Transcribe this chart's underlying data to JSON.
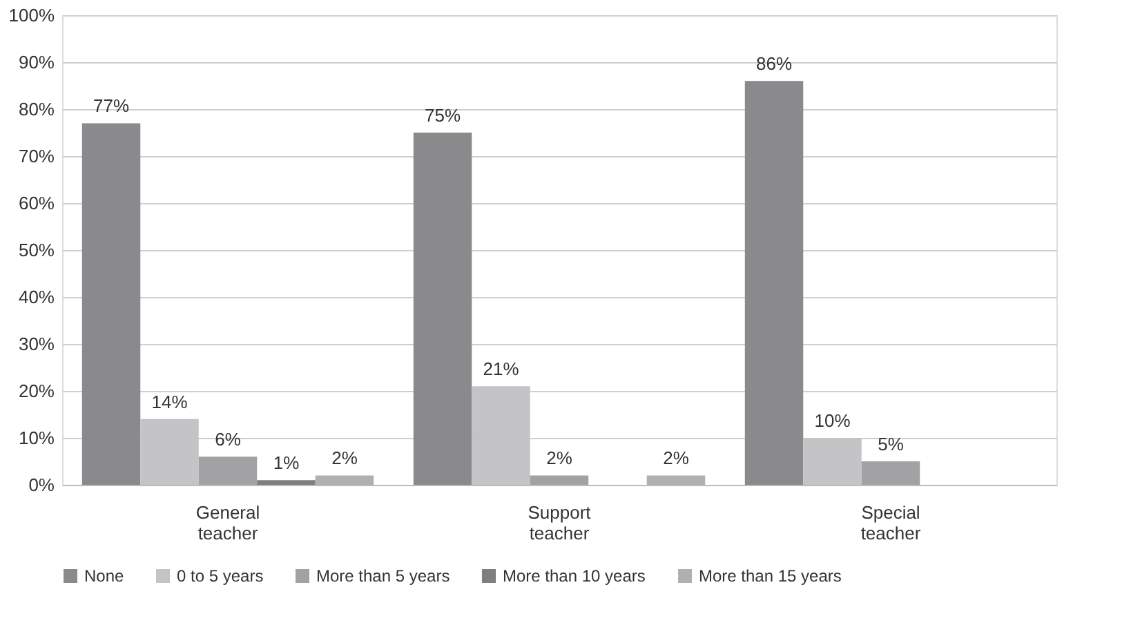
{
  "chart_data": {
    "type": "bar",
    "categories": [
      "General teacher",
      "Support teacher",
      "Special teacher"
    ],
    "series": [
      {
        "name": "None",
        "color": "#8a8a8d",
        "values": [
          77,
          75,
          86
        ],
        "value_labels": [
          "77%",
          "75%",
          "86%"
        ]
      },
      {
        "name": "0 to 5 years",
        "color": "#c4c4c6",
        "values": [
          14,
          21,
          10
        ],
        "value_labels": [
          "14%",
          "21%",
          "10%"
        ]
      },
      {
        "name": "More than 5 years",
        "color": "#a2a2a5",
        "values": [
          6,
          2,
          5
        ],
        "value_labels": [
          "6%",
          "2%",
          "5%"
        ]
      },
      {
        "name": "More than 10 years",
        "color": "#7f7f82",
        "values": [
          1,
          null,
          null
        ],
        "value_labels": [
          "1%",
          null,
          null
        ]
      },
      {
        "name": "More than 15 years",
        "color": "#b0b0b2",
        "values": [
          2,
          2,
          null
        ],
        "value_labels": [
          "2%",
          "2%",
          null
        ]
      }
    ],
    "ylim": [
      0,
      100
    ],
    "yticks": [
      {
        "value": 0,
        "label": "0%"
      },
      {
        "value": 10,
        "label": "10%"
      },
      {
        "value": 20,
        "label": "20%"
      },
      {
        "value": 30,
        "label": "30%"
      },
      {
        "value": 40,
        "label": "40%"
      },
      {
        "value": 50,
        "label": "50%"
      },
      {
        "value": 60,
        "label": "60%"
      },
      {
        "value": 70,
        "label": "70%"
      },
      {
        "value": 80,
        "label": "80%"
      },
      {
        "value": 90,
        "label": "90%"
      },
      {
        "value": 100,
        "label": "100%"
      }
    ],
    "grid": "y",
    "legend": "bottom"
  }
}
